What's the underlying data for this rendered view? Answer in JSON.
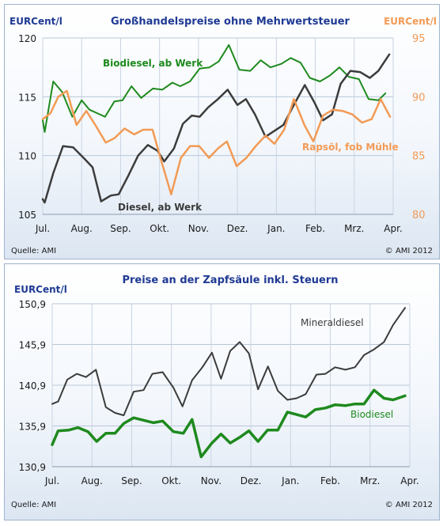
{
  "top_chart": {
    "title": "Großhandelspreise ohne Mehrwertsteuer",
    "left_unit": "EURCent/l",
    "right_unit": "EURCent/l",
    "source": "Quelle: AMI",
    "copyright": "© AMI 2012",
    "colors": {
      "biodiesel": "#1e8a1e",
      "diesel": "#3c3c3c",
      "rapsoel": "#f29a55",
      "left_axis": "#1f3a93",
      "right_axis": "#f29a55"
    }
  },
  "bottom_chart": {
    "title": "Preise an der Zapfsäule inkl. Steuern",
    "unit": "EURCent/l",
    "source": "Quelle: AMI",
    "copyright": "© AMI 2012",
    "colors": {
      "biodiesel": "#1e8a1e",
      "mineraldiesel": "#3c3c3c",
      "axis": "#1f3a93"
    }
  },
  "chart_data": [
    {
      "type": "line",
      "title": "Großhandelspreise ohne Mehrwertsteuer",
      "x_ticks": [
        "Jul.",
        "Aug.",
        "Sep.",
        "Okt.",
        "Nov.",
        "Dez.",
        "Jan.",
        "Feb.",
        "Mrz.",
        "Apr."
      ],
      "x_range": [
        0,
        9
      ],
      "y_left": {
        "label": "EURCent/l",
        "ticks": [
          "105",
          "110",
          "115",
          "120"
        ],
        "range": [
          105,
          120
        ]
      },
      "y_right": {
        "label": "EURCent/l",
        "ticks": [
          "80",
          "85",
          "90",
          "95"
        ],
        "range": [
          80,
          95
        ]
      },
      "series": [
        {
          "name": "Biodiesel, ab Werk",
          "axis": "left",
          "color": "#1e8a1e",
          "x": [
            0,
            0.05,
            0.27,
            0.5,
            0.76,
            1.0,
            1.2,
            1.6,
            1.84,
            2.05,
            2.28,
            2.53,
            2.83,
            3.07,
            3.33,
            3.53,
            3.78,
            4.03,
            4.28,
            4.52,
            4.78,
            5.05,
            5.33,
            5.6,
            5.85,
            6.13,
            6.37,
            6.62,
            6.86,
            7.12,
            7.37,
            7.62,
            7.86,
            8.12,
            8.37,
            8.62,
            8.8
          ],
          "y": [
            113,
            112,
            116.3,
            115.4,
            113.3,
            114.7,
            113.9,
            113.3,
            114.6,
            114.7,
            115.9,
            114.9,
            115.7,
            115.6,
            116.2,
            115.9,
            116.3,
            117.4,
            117.5,
            118,
            119.4,
            117.3,
            117.2,
            118.1,
            117.5,
            117.8,
            118.3,
            117.9,
            116.6,
            116.3,
            116.8,
            117.5,
            116.7,
            116.5,
            114.8,
            114.7,
            115.3
          ]
        },
        {
          "name": "Diesel, ab Werk",
          "axis": "left",
          "color": "#3c3c3c",
          "x": [
            0,
            0.05,
            0.27,
            0.52,
            0.78,
            1.05,
            1.28,
            1.5,
            1.75,
            1.95,
            2.2,
            2.45,
            2.7,
            2.95,
            3.12,
            3.37,
            3.6,
            3.83,
            4.03,
            4.25,
            4.5,
            4.75,
            5.0,
            5.22,
            5.45,
            5.72,
            5.95,
            6.18,
            6.48,
            6.73,
            6.98,
            7.2,
            7.43,
            7.65,
            7.9,
            8.15,
            8.4,
            8.62,
            8.9
          ],
          "y": [
            106.3,
            106,
            108.5,
            110.8,
            110.7,
            109.8,
            109,
            106.1,
            106.6,
            106.7,
            108.3,
            110,
            110.9,
            110.4,
            109.5,
            110.6,
            112.7,
            113.4,
            113.3,
            114.1,
            114.8,
            115.6,
            114.3,
            114.8,
            113.5,
            111.6,
            112.1,
            112.6,
            114.5,
            116,
            114.5,
            113,
            113.5,
            116.1,
            117.2,
            117.1,
            116.6,
            117.2,
            118.6
          ]
        },
        {
          "name": "Rapsöl, fob Mühle",
          "axis": "right",
          "color": "#f29a55",
          "x": [
            0,
            0.2,
            0.4,
            0.62,
            0.87,
            1.12,
            1.35,
            1.62,
            1.85,
            2.1,
            2.35,
            2.58,
            2.82,
            3.05,
            3.3,
            3.55,
            3.78,
            4.02,
            4.27,
            4.5,
            4.73,
            4.98,
            5.23,
            5.47,
            5.72,
            5.95,
            6.2,
            6.45,
            6.72,
            6.95,
            7.2,
            7.45,
            7.7,
            7.95,
            8.2,
            8.45,
            8.68,
            8.92
          ],
          "y": [
            88.1,
            88.6,
            90,
            90.5,
            87.6,
            88.8,
            87.6,
            86.1,
            86.5,
            87.3,
            86.8,
            87.2,
            87.2,
            84.5,
            81.7,
            84.8,
            85.8,
            85.8,
            84.8,
            85.6,
            86.2,
            84.1,
            84.8,
            85.8,
            86.7,
            86,
            87.2,
            89.8,
            87.6,
            86.2,
            88.4,
            88.9,
            88.8,
            88.5,
            87.8,
            88.1,
            89.8,
            88.3
          ]
        }
      ],
      "annotations": [
        "Biodiesel, ab Werk",
        "Diesel, ab Werk",
        "Rapsöl, fob Mühle"
      ]
    },
    {
      "type": "line",
      "title": "Preise an der Zapfsäule inkl. Steuern",
      "x_ticks": [
        "Jul.",
        "Aug.",
        "Sep.",
        "Okt.",
        "Nov.",
        "Dez.",
        "Jan.",
        "Feb.",
        "Mrz.",
        "Apr."
      ],
      "x_range": [
        0,
        9
      ],
      "y": {
        "label": "EURCent/l",
        "ticks": [
          "130,9",
          "135,9",
          "140,9",
          "145,9",
          "150,9"
        ],
        "range": [
          130.9,
          150.9
        ]
      },
      "series": [
        {
          "name": "Mineraldiesel",
          "axis": "left",
          "color": "#3c3c3c",
          "x": [
            0,
            0.15,
            0.38,
            0.62,
            0.85,
            1.1,
            1.35,
            1.58,
            1.8,
            2.05,
            2.3,
            2.52,
            2.78,
            3.05,
            3.28,
            3.52,
            3.78,
            4.02,
            4.25,
            4.48,
            4.72,
            4.95,
            5.18,
            5.43,
            5.68,
            5.92,
            6.15,
            6.38,
            6.65,
            6.88,
            7.12,
            7.38,
            7.62,
            7.85,
            8.1,
            8.35,
            8.58,
            8.88
          ],
          "y": [
            138.6,
            138.9,
            141.6,
            142.3,
            141.9,
            142.8,
            138.2,
            137.5,
            137.2,
            140.1,
            140.3,
            142.3,
            142.5,
            140.6,
            138.3,
            141.5,
            143.1,
            144.9,
            141.7,
            145.1,
            146.2,
            144.8,
            140.4,
            143.2,
            140.2,
            139.1,
            139.3,
            139.8,
            142.2,
            142.3,
            143.1,
            142.8,
            143.1,
            144.6,
            145.3,
            146.2,
            148.3,
            150.4
          ]
        },
        {
          "name": "Biodiesel",
          "axis": "left",
          "color": "#1e8a1e",
          "x": [
            0,
            0.15,
            0.42,
            0.65,
            0.9,
            1.12,
            1.35,
            1.58,
            1.8,
            2.05,
            2.3,
            2.55,
            2.78,
            3.05,
            3.3,
            3.52,
            3.75,
            4.02,
            4.25,
            4.48,
            4.72,
            4.95,
            5.18,
            5.42,
            5.68,
            5.92,
            6.15,
            6.38,
            6.62,
            6.88,
            7.12,
            7.38,
            7.62,
            7.85,
            8.1,
            8.35,
            8.58,
            8.88
          ],
          "y": [
            133.6,
            135.3,
            135.4,
            135.7,
            135.2,
            134,
            135,
            135,
            136.2,
            136.9,
            136.6,
            136.3,
            136.5,
            135.2,
            135,
            136.7,
            132.1,
            133.8,
            134.9,
            133.8,
            134.5,
            135.3,
            134,
            135.4,
            135.4,
            137.6,
            137.3,
            137,
            137.9,
            138.1,
            138.5,
            138.4,
            138.6,
            138.6,
            140.3,
            139.3,
            139.1,
            139.6
          ]
        }
      ],
      "annotations": [
        "Mineraldiesel",
        "Biodiesel"
      ]
    }
  ]
}
